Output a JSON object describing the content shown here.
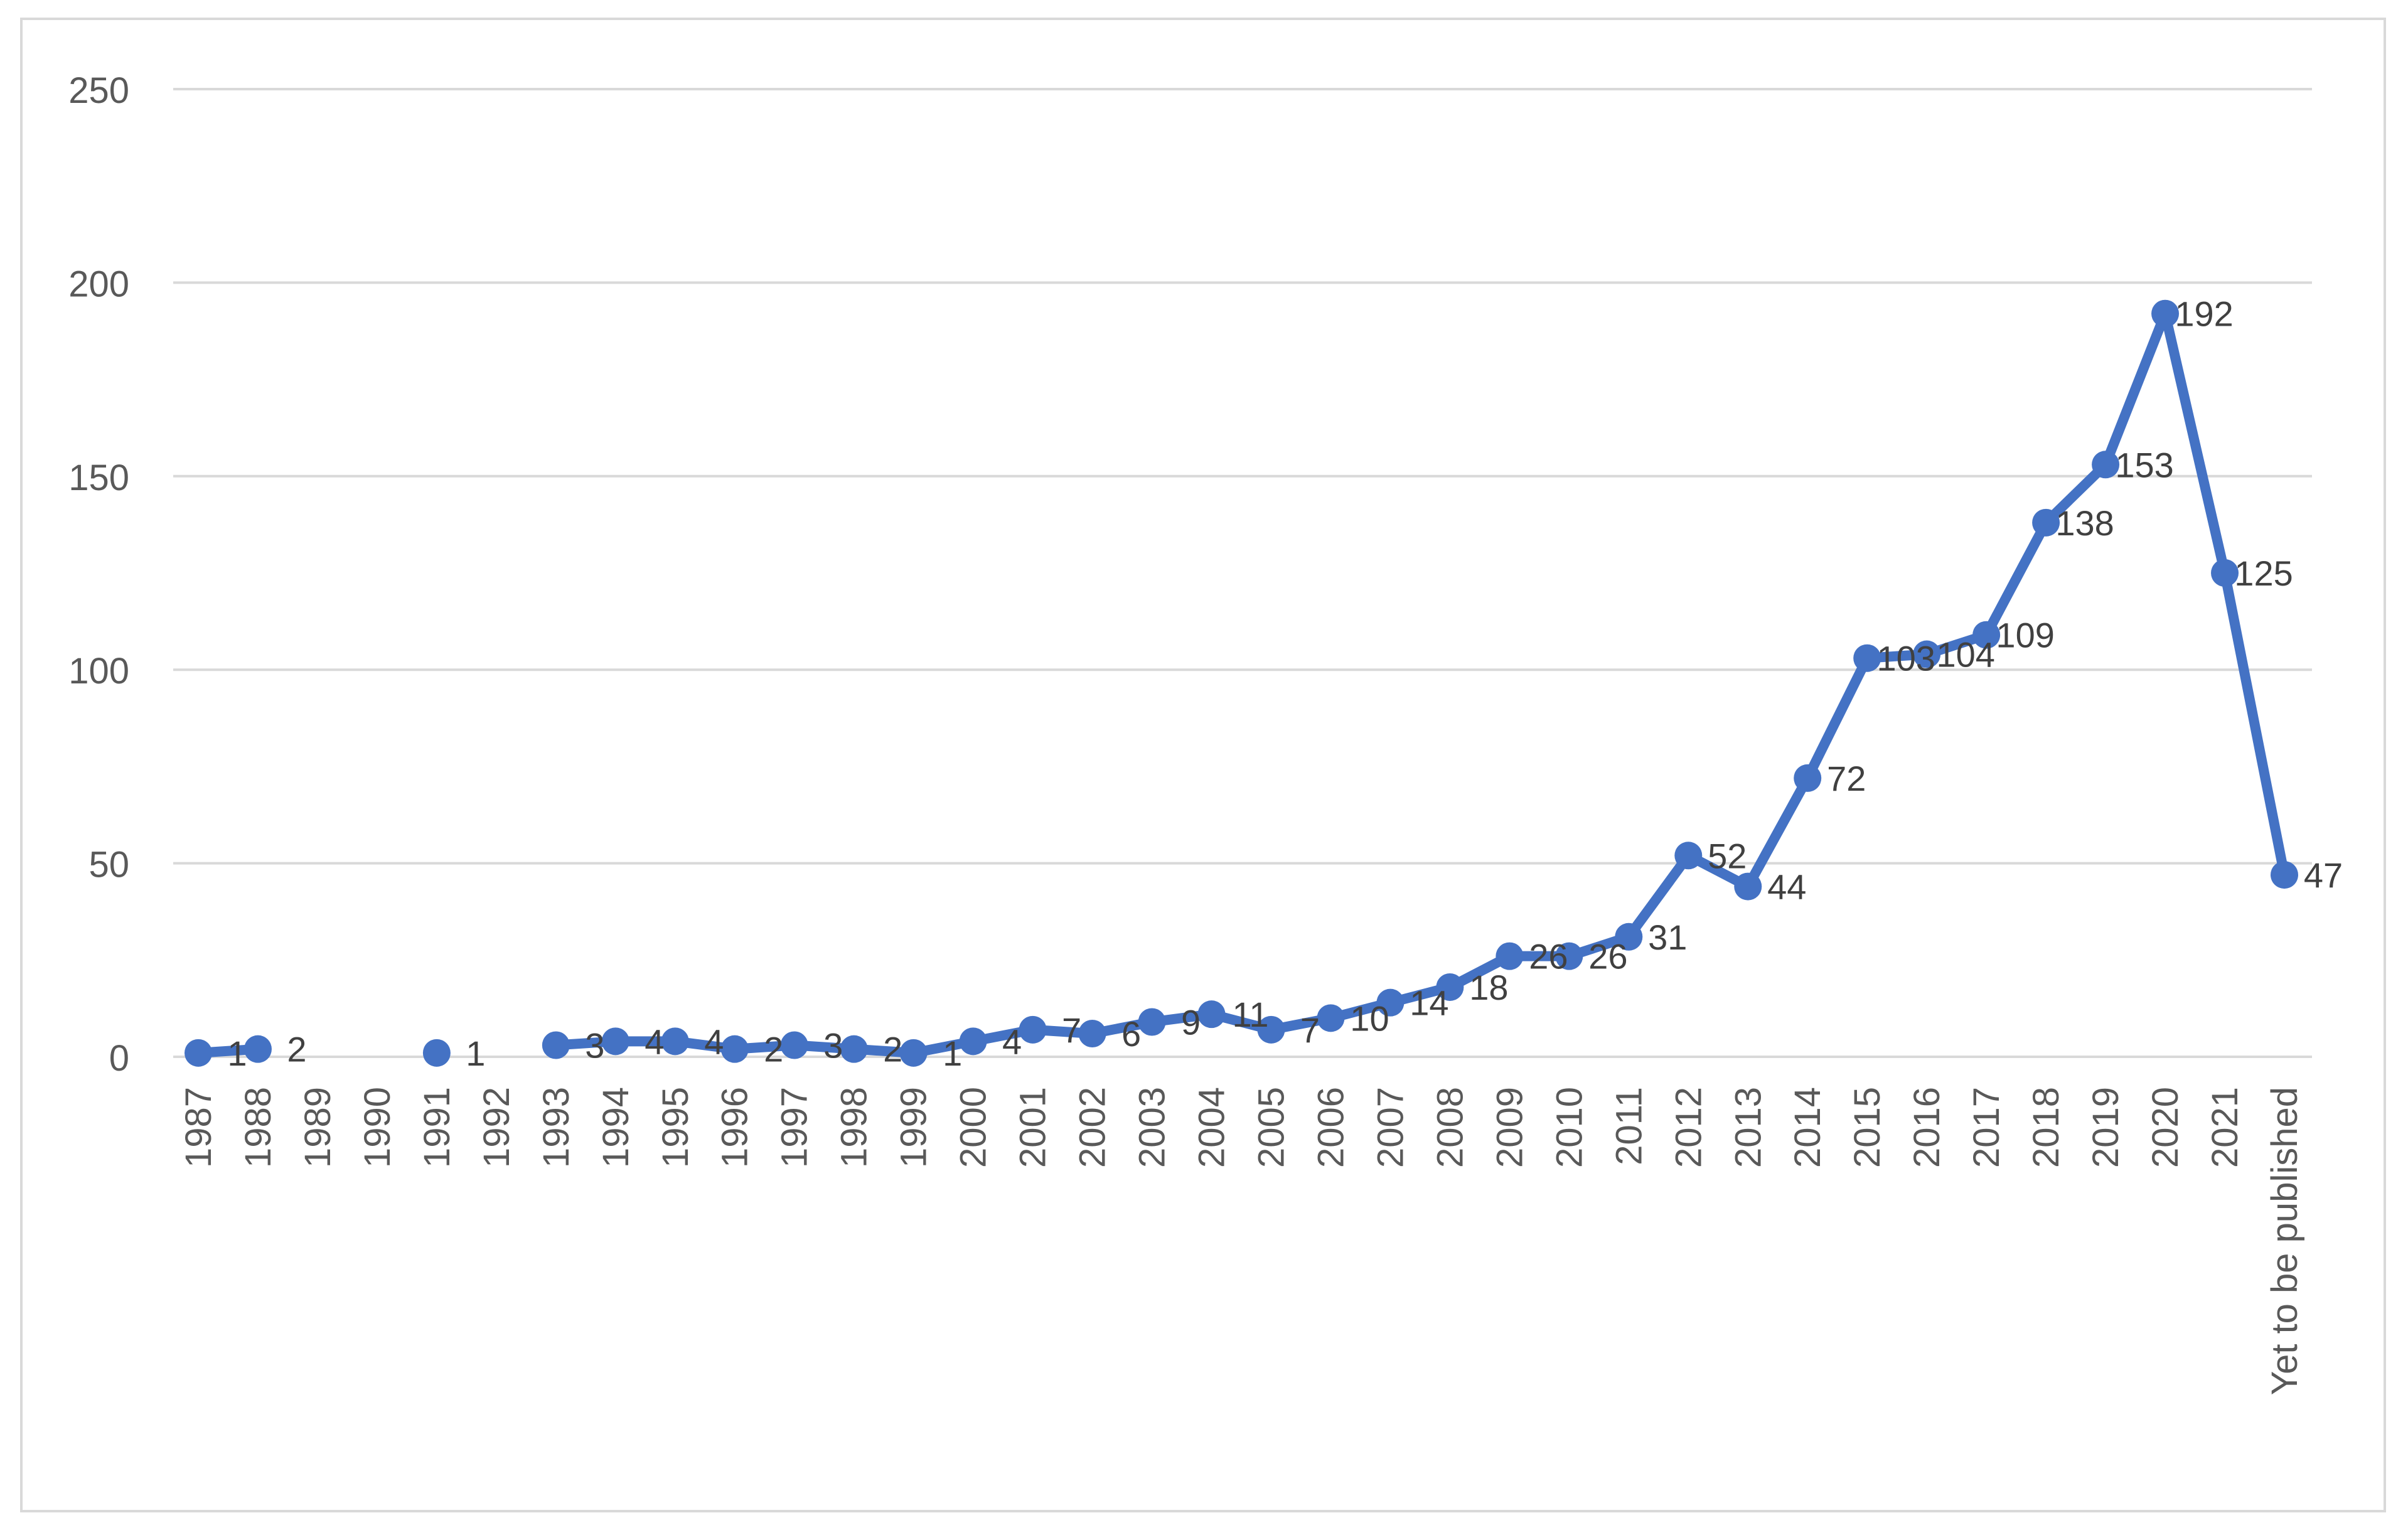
{
  "chart_data": {
    "type": "line",
    "title": "",
    "xlabel": "",
    "ylabel": "",
    "ylim": [
      0,
      250
    ],
    "yticks": [
      0,
      50,
      100,
      150,
      200,
      250
    ],
    "grid": "horizontal",
    "legend": "none",
    "categories": [
      "1987",
      "1988",
      "1989",
      "1990",
      "1991",
      "1992",
      "1993",
      "1994",
      "1995",
      "1996",
      "1997",
      "1998",
      "1999",
      "2000",
      "2001",
      "2002",
      "2003",
      "2004",
      "2005",
      "2006",
      "2007",
      "2008",
      "2009",
      "2010",
      "2011",
      "2012",
      "2013",
      "2014",
      "2015",
      "2016",
      "2017",
      "2018",
      "2019",
      "2020",
      "2021",
      "Yet to be published"
    ],
    "series": [
      {
        "values": [
          1,
          2,
          null,
          null,
          1,
          null,
          3,
          4,
          4,
          2,
          3,
          2,
          1,
          4,
          7,
          6,
          9,
          11,
          7,
          10,
          14,
          18,
          26,
          26,
          31,
          52,
          44,
          72,
          103,
          104,
          109,
          138,
          153,
          192,
          125,
          47
        ],
        "labels": [
          "1",
          "2",
          "",
          "",
          "1",
          "",
          "3",
          "4",
          "4",
          "2",
          "3",
          "2",
          "1",
          "4",
          "7",
          "6",
          "9",
          "11",
          "7",
          "10",
          "14",
          "18",
          "26",
          "26",
          "31",
          "52",
          "44",
          "72",
          "103",
          "104",
          "109",
          "138",
          "153",
          "192",
          "125",
          "47"
        ],
        "color": "#4472c4"
      }
    ],
    "gridline_color": "#d9d9d9",
    "tick_label_color": "#595959",
    "data_label_color": "#404040"
  }
}
